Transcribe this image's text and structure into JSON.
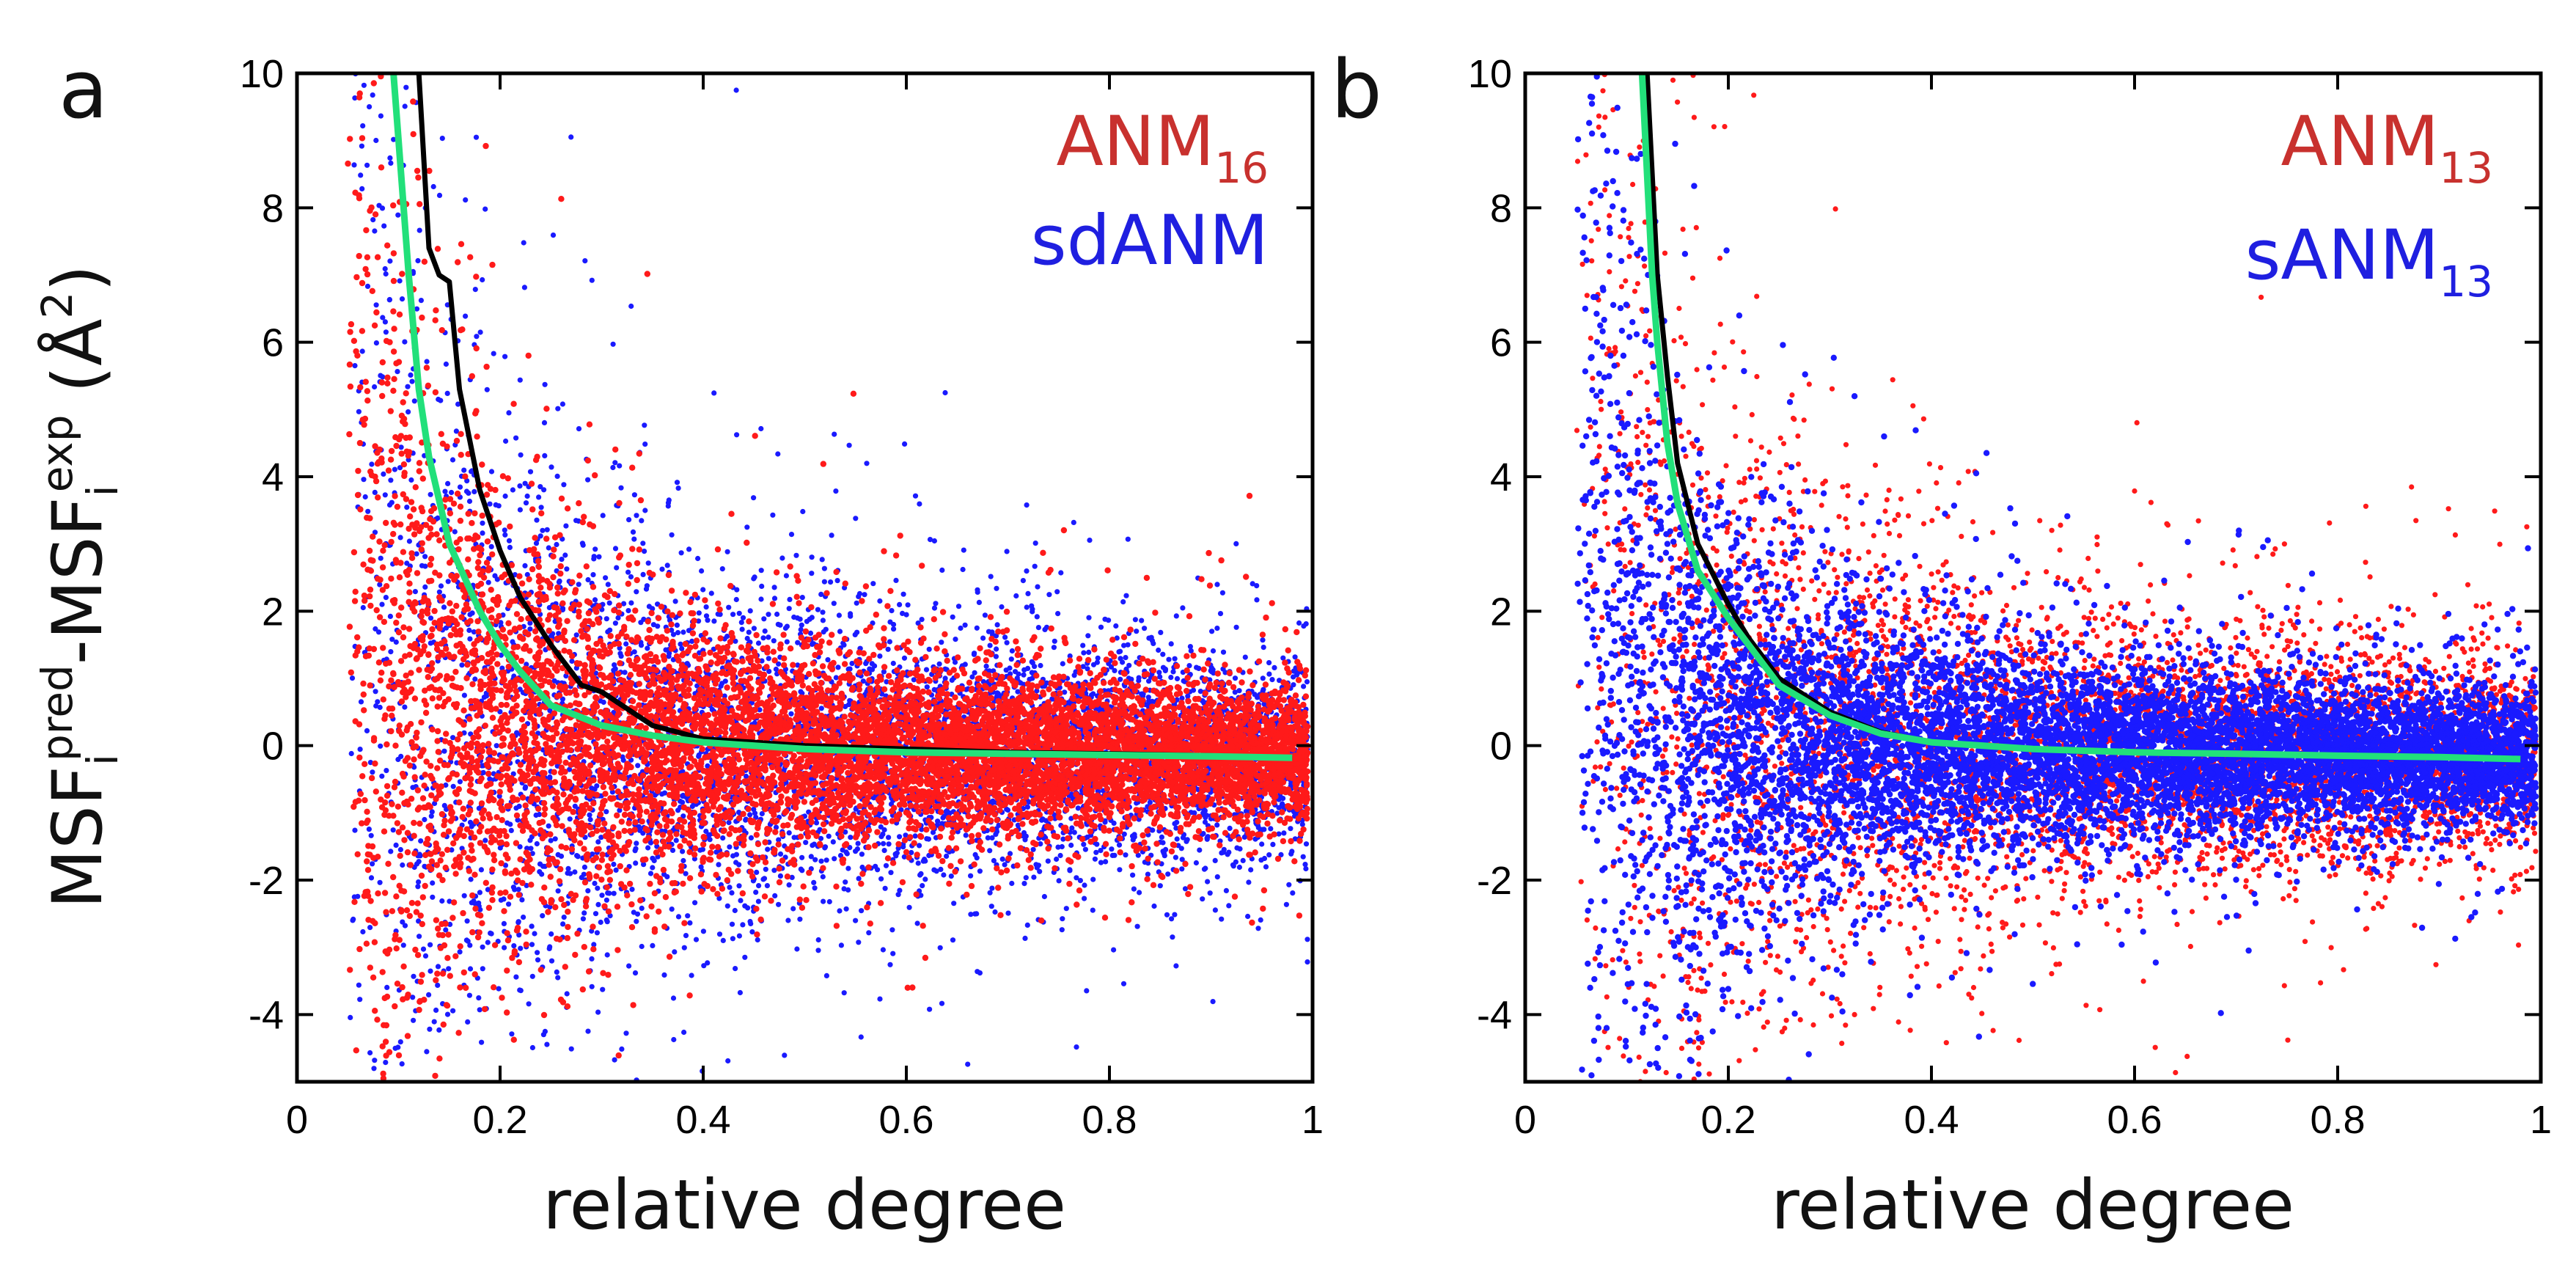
{
  "chart_data": [
    {
      "type": "scatter",
      "panel": "a",
      "xlabel": "relative degree",
      "ylabel": "MSF",
      "ylabel_parts": {
        "base1": "MSF",
        "sub1": "i",
        "sup1": "pred",
        "dash": "-",
        "base2": "MSF",
        "sub2": "i",
        "sup2": "exp",
        "unit_open": " (Å",
        "unit_sup": "2",
        "unit_close": ")"
      },
      "xlim": [
        0,
        1
      ],
      "ylim": [
        -5,
        10
      ],
      "x_ticks": [
        0,
        0.2,
        0.4,
        0.6,
        0.8,
        1
      ],
      "x_tick_labels": [
        "0",
        "0.2",
        "0.4",
        "0.6",
        "0.8",
        "1"
      ],
      "y_ticks": [
        -4,
        -2,
        0,
        2,
        4,
        6,
        8,
        10
      ],
      "y_tick_labels": [
        "-4",
        "-2",
        "0",
        "2",
        "4",
        "6",
        "8",
        "10"
      ],
      "legend": [
        {
          "name": "ANM",
          "sub": "16",
          "color": "#c8312e"
        },
        {
          "name": "sdANM",
          "sub": "",
          "color": "#1f1fe0"
        }
      ],
      "series": [
        {
          "name": "ANM16 points",
          "color": "#ff1a1a",
          "kind": "scatter",
          "front": true
        },
        {
          "name": "sdANM points",
          "color": "#1a1aff",
          "kind": "scatter",
          "front": false
        },
        {
          "name": "mean (black)",
          "color": "#000000",
          "kind": "line",
          "x": [
            0.12,
            0.13,
            0.14,
            0.15,
            0.16,
            0.18,
            0.2,
            0.22,
            0.25,
            0.28,
            0.3,
            0.35,
            0.4,
            0.5,
            0.6,
            0.7,
            0.8,
            0.9,
            0.98
          ],
          "y": [
            10,
            7.4,
            7.0,
            6.9,
            5.3,
            3.8,
            2.9,
            2.2,
            1.5,
            0.9,
            0.8,
            0.3,
            0.1,
            0.0,
            -0.05,
            -0.1,
            -0.12,
            -0.15,
            -0.18
          ]
        },
        {
          "name": "mean (green)",
          "color": "#22e07a",
          "kind": "line",
          "x": [
            0.095,
            0.11,
            0.12,
            0.13,
            0.15,
            0.18,
            0.2,
            0.22,
            0.25,
            0.3,
            0.35,
            0.4,
            0.5,
            0.6,
            0.7,
            0.8,
            0.9,
            0.98
          ],
          "y": [
            10,
            7.0,
            5.3,
            4.3,
            3.0,
            2.0,
            1.5,
            1.1,
            0.6,
            0.3,
            0.15,
            0.05,
            -0.05,
            -0.1,
            -0.12,
            -0.14,
            -0.16,
            -0.18
          ]
        }
      ]
    },
    {
      "type": "scatter",
      "panel": "b",
      "xlabel": "relative degree",
      "xlim": [
        0,
        1
      ],
      "ylim": [
        -5,
        10
      ],
      "x_ticks": [
        0,
        0.2,
        0.4,
        0.6,
        0.8,
        1
      ],
      "x_tick_labels": [
        "0",
        "0.2",
        "0.4",
        "0.6",
        "0.8",
        "1"
      ],
      "y_ticks": [
        -4,
        -2,
        0,
        2,
        4,
        6,
        8,
        10
      ],
      "y_tick_labels": [
        "-4",
        "-2",
        "0",
        "2",
        "4",
        "6",
        "8",
        "10"
      ],
      "legend": [
        {
          "name": "ANM",
          "sub": "13",
          "color": "#c8312e"
        },
        {
          "name": "sANM",
          "sub": "13",
          "color": "#1f1fe0"
        }
      ],
      "series": [
        {
          "name": "ANM13 points",
          "color": "#ff1a1a",
          "kind": "scatter",
          "front": false
        },
        {
          "name": "sANM13 points",
          "color": "#1a1aff",
          "kind": "scatter",
          "front": true
        },
        {
          "name": "mean (black)",
          "color": "#000000",
          "kind": "line",
          "x": [
            0.12,
            0.13,
            0.14,
            0.15,
            0.17,
            0.2,
            0.22,
            0.25,
            0.3,
            0.35,
            0.4,
            0.5,
            0.6,
            0.7,
            0.8,
            0.9,
            0.98
          ],
          "y": [
            10,
            7.0,
            5.5,
            4.2,
            3.0,
            2.1,
            1.6,
            1.0,
            0.5,
            0.2,
            0.05,
            -0.05,
            -0.1,
            -0.12,
            -0.15,
            -0.17,
            -0.2
          ]
        },
        {
          "name": "mean (green)",
          "color": "#22e07a",
          "kind": "line",
          "x": [
            0.115,
            0.125,
            0.13,
            0.14,
            0.15,
            0.17,
            0.2,
            0.22,
            0.25,
            0.3,
            0.35,
            0.4,
            0.5,
            0.6,
            0.7,
            0.8,
            0.9,
            0.98
          ],
          "y": [
            10,
            7.0,
            6.0,
            4.5,
            3.6,
            2.6,
            1.9,
            1.5,
            0.9,
            0.45,
            0.18,
            0.05,
            -0.05,
            -0.1,
            -0.12,
            -0.15,
            -0.17,
            -0.2
          ]
        }
      ]
    }
  ]
}
